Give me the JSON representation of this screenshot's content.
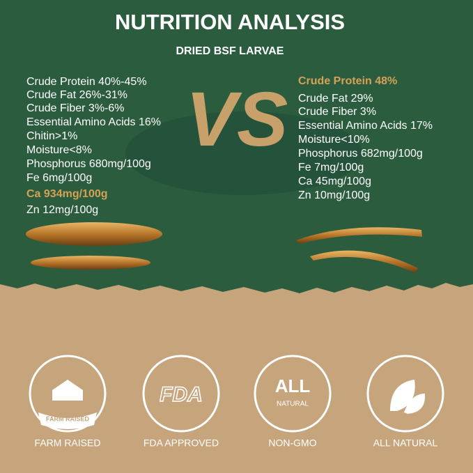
{
  "header": {
    "title": "NUTRITION ANALYSIS",
    "subtitle": "DRIED BSF LARVAE"
  },
  "left": {
    "items": [
      "Crude Protein 40%-45%",
      "Crude Fat 26%-31%",
      "Crude Fiber 3%-6%",
      "Essential Amino Acids 16%",
      "Chitin>1%",
      "Moisture<8%",
      "Phosphorus 680mg/100g",
      "Fe 6mg/100g",
      "Ca 934mg/100g",
      "Zn 12mg/100g"
    ]
  },
  "vs_label": "VS",
  "right": {
    "items": [
      "Crude Protein 48%",
      "Crude Fat 29%",
      "Crude Fiber 3%",
      "Essential Amino Acids 17%",
      "Moisture<10%",
      "Phosphorus 682mg/100g",
      "Fe 7mg/100g",
      "Ca 45mg/100g",
      "Zn 10mg/100g"
    ]
  },
  "badges": [
    {
      "icon_text": "FARM RAISED",
      "label": "FARM RAISED"
    },
    {
      "icon_text": "FDA",
      "label": "FDA APPROVED"
    },
    {
      "icon_text": "ALL",
      "icon_subtext": "NATURAL",
      "label": "NON-GMO"
    },
    {
      "label": "ALL NATURAL"
    }
  ]
}
